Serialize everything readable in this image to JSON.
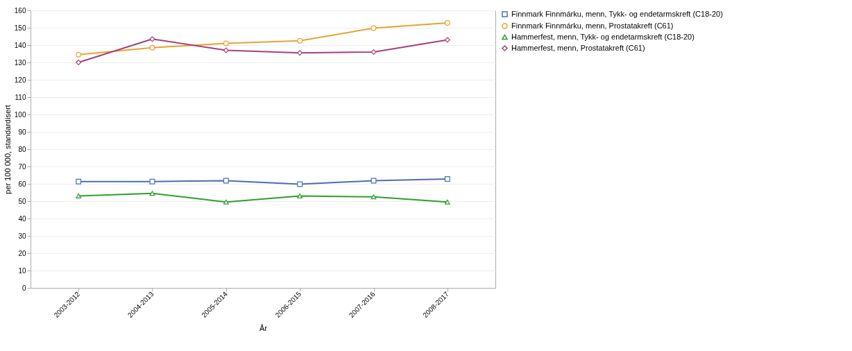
{
  "chart_data": {
    "type": "line",
    "xlabel": "År",
    "ylabel": "per 100 000, standardisert",
    "categories": [
      "2003-2012",
      "2004-2013",
      "2005-2014",
      "2006-2015",
      "2007-2016",
      "2008-2017"
    ],
    "series": [
      {
        "name": "Finnmark Finnmárku, menn,  Tykk- og endetarmskreft (C18-20)",
        "color": "#4a6fb5",
        "marker": "square",
        "values": [
          61.3,
          61.3,
          61.8,
          59.8,
          61.8,
          62.8
        ]
      },
      {
        "name": "Finnmark Finnmárku, menn, Prostatakreft (C61)",
        "color": "#e8a32e",
        "marker": "circle",
        "values": [
          134.5,
          138.5,
          141,
          142.5,
          149.8,
          152.8
        ]
      },
      {
        "name": "Hammerfest, menn,  Tykk- og endetarmskreft (C18-20)",
        "color": "#2ca02c",
        "marker": "triangle",
        "values": [
          53,
          54.5,
          49.5,
          53,
          52.5,
          49.5
        ]
      },
      {
        "name": "Hammerfest, menn, Prostatakreft (C61)",
        "color": "#a4407e",
        "marker": "diamond",
        "values": [
          130,
          143.5,
          137,
          135.5,
          136,
          143
        ]
      }
    ],
    "ylim": [
      0,
      160
    ],
    "yticks": [
      0,
      10,
      20,
      30,
      40,
      50,
      60,
      70,
      80,
      90,
      100,
      110,
      120,
      130,
      140,
      150,
      160
    ],
    "grid": "y",
    "legend": "right",
    "line_style": "solid"
  }
}
